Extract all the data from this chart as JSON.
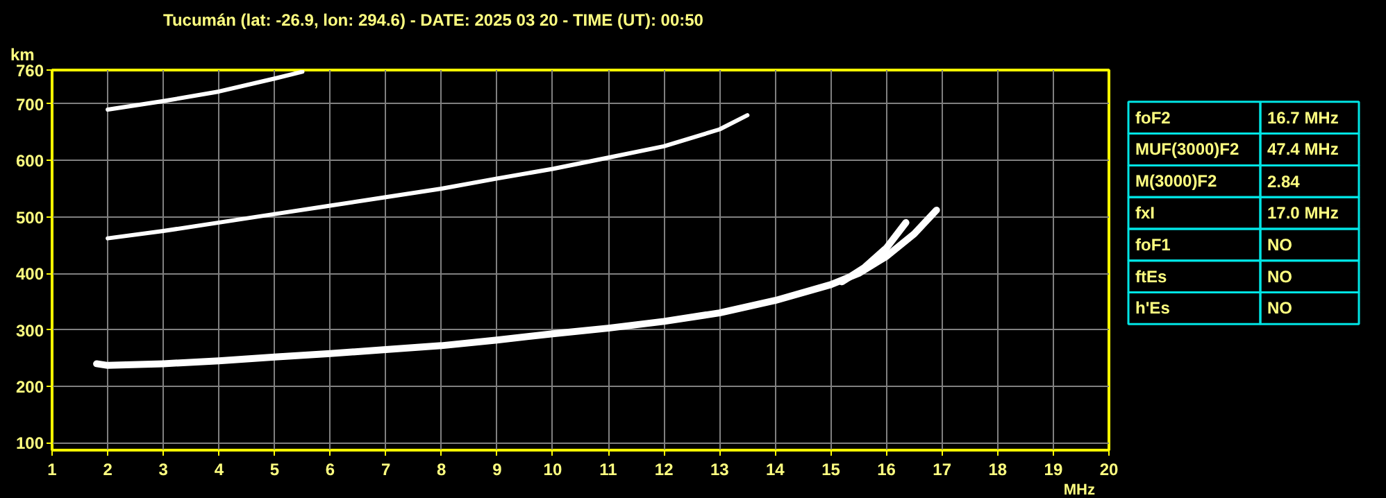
{
  "chart_data": [
    {
      "type": "line",
      "title": "Tucumán (lat: -26.9, lon: 294.6) - DATE: 2025 03 20 - TIME (UT): 00:50",
      "xlabel": "MHz",
      "ylabel": "km",
      "xlim": [
        1,
        20
      ],
      "ylim": [
        87,
        760
      ],
      "xticks": [
        1,
        2,
        3,
        4,
        5,
        6,
        7,
        8,
        9,
        10,
        11,
        12,
        13,
        14,
        15,
        16,
        17,
        18,
        19,
        20
      ],
      "yticks": [
        100,
        200,
        300,
        400,
        500,
        600,
        700,
        760
      ],
      "grid": true,
      "marker": "none",
      "line_style": "solid",
      "series": [
        {
          "color": "#ffffff",
          "x": [
            1.8,
            2,
            3,
            4,
            5,
            6,
            7,
            8,
            9,
            10,
            11,
            12,
            13,
            14,
            15,
            15.5,
            16,
            16.5,
            16.9
          ],
          "values": [
            240,
            237,
            240,
            245,
            252,
            258,
            265,
            272,
            282,
            293,
            303,
            315,
            330,
            352,
            380,
            400,
            430,
            470,
            512
          ]
        },
        {
          "color": "#ffffff",
          "x": [
            15.2,
            15.6,
            16.0,
            16.35
          ],
          "values": [
            385,
            410,
            445,
            490
          ]
        },
        {
          "color": "#ffffff",
          "x": [
            2,
            3,
            4,
            5,
            6,
            7,
            8,
            9,
            10,
            11,
            12,
            13,
            13.5
          ],
          "values": [
            462,
            475,
            490,
            505,
            520,
            535,
            550,
            568,
            585,
            605,
            625,
            655,
            680
          ]
        },
        {
          "color": "#ffffff",
          "x": [
            2,
            3,
            4,
            5,
            5.5
          ],
          "values": [
            690,
            705,
            722,
            745,
            757
          ]
        }
      ]
    },
    {
      "type": "other",
      "annotations": [
        "foF2",
        "16.7 MHz",
        "MUF(3000)F2",
        "47.4 MHz",
        "M(3000)F2",
        "2.84",
        "fxI",
        "17.0 MHz",
        "foF1",
        "NO",
        "ftEs",
        "NO",
        "h'Es",
        "NO"
      ]
    }
  ]
}
